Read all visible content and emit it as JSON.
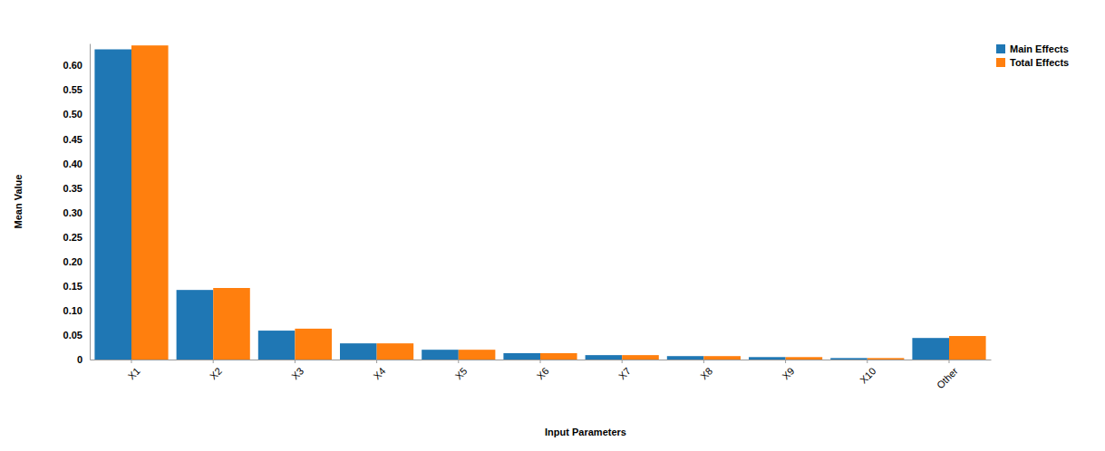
{
  "chart_data": {
    "type": "bar",
    "x_label": "Input Parameters",
    "y_label": "Mean Value",
    "categories": [
      "X1",
      "X2",
      "X3",
      "X4",
      "X5",
      "X6",
      "X7",
      "X8",
      "X9",
      "X10",
      "Other"
    ],
    "series": [
      {
        "name": "Main Effects",
        "color": "#1f77b4",
        "values": [
          0.633,
          0.142,
          0.059,
          0.033,
          0.02,
          0.013,
          0.009,
          0.007,
          0.005,
          0.003,
          0.044
        ]
      },
      {
        "name": "Total Effects",
        "color": "#ff7f0e",
        "values": [
          0.641,
          0.146,
          0.063,
          0.033,
          0.02,
          0.013,
          0.009,
          0.007,
          0.005,
          0.003,
          0.048
        ]
      }
    ],
    "ylim": [
      0,
      0.645
    ],
    "yticks": [
      0,
      0.05,
      {
        "value": 0.1,
        "label": "0.10"
      },
      0.15,
      {
        "value": 0.2,
        "label": "0.20"
      },
      0.25,
      {
        "value": 0.3,
        "label": "0.30"
      },
      0.35,
      {
        "value": 0.4,
        "label": "0.40"
      },
      0.45,
      {
        "value": 0.5,
        "label": "0.50"
      },
      0.55,
      {
        "value": 0.6,
        "label": "0.60"
      }
    ],
    "grid": false,
    "legend": "top-right"
  }
}
